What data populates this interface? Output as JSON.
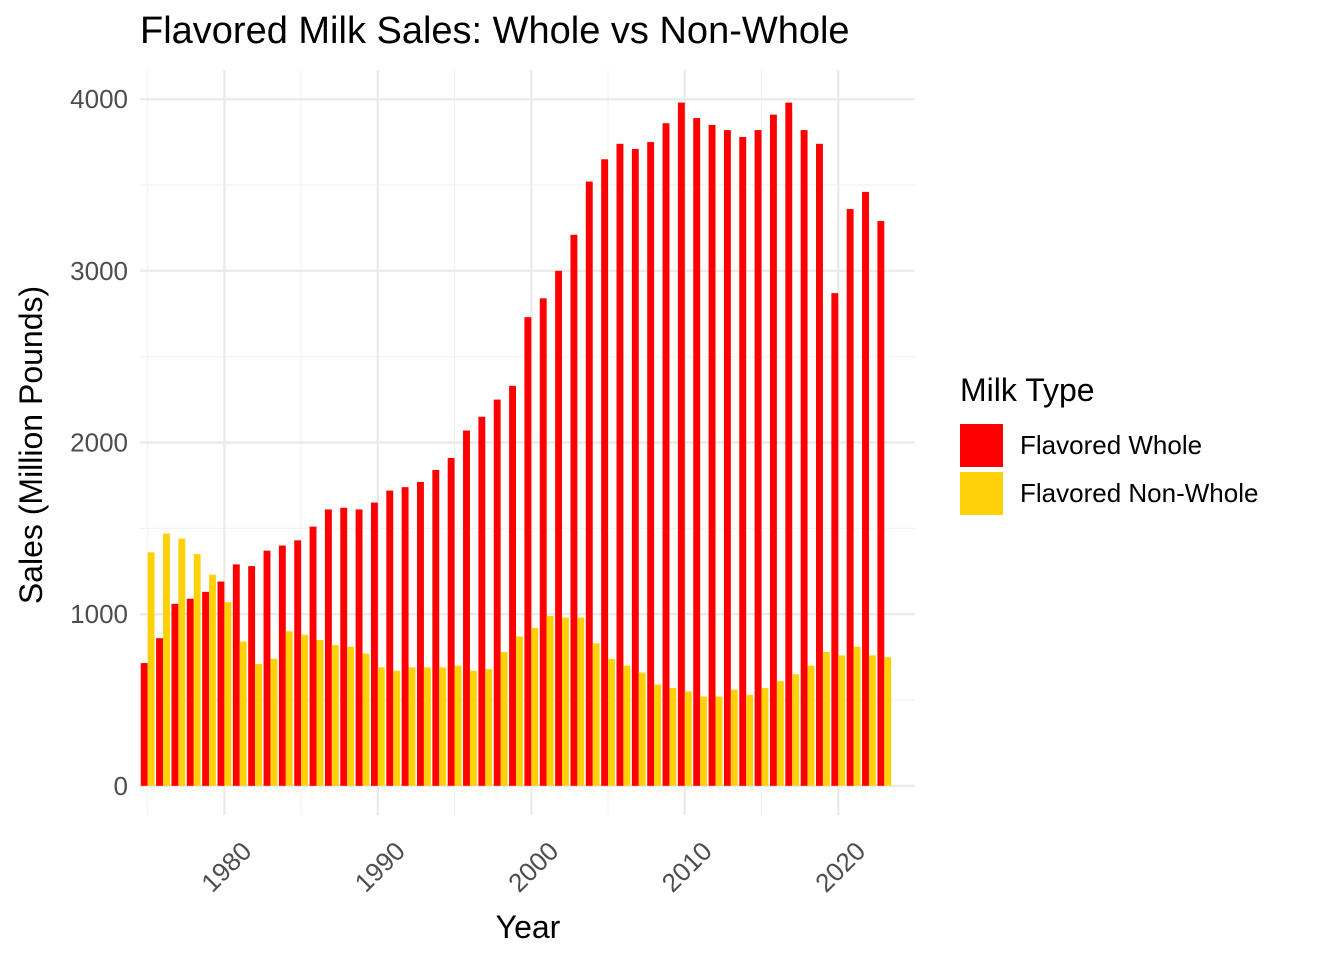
{
  "chart_data": {
    "type": "bar",
    "title": "Flavored Milk Sales: Whole vs Non-Whole",
    "xlabel": "Year",
    "ylabel": "Sales (Million Pounds)",
    "x": [
      1975,
      1976,
      1977,
      1978,
      1979,
      1980,
      1981,
      1982,
      1983,
      1984,
      1985,
      1986,
      1987,
      1988,
      1989,
      1990,
      1991,
      1992,
      1993,
      1994,
      1995,
      1996,
      1997,
      1998,
      1999,
      2000,
      2001,
      2002,
      2003,
      2004,
      2005,
      2006,
      2007,
      2008,
      2009,
      2010,
      2011,
      2012,
      2013,
      2014,
      2015,
      2016,
      2017,
      2018,
      2019,
      2020,
      2021,
      2022,
      2023
    ],
    "xticks": [
      1980,
      1990,
      2000,
      2010,
      2020
    ],
    "yticks": [
      0,
      1000,
      2000,
      3000,
      4000
    ],
    "xlim": [
      1974.5,
      2025
    ],
    "ylim": [
      -170,
      4170
    ],
    "grid": true,
    "legend_position": "right",
    "legend_title": "Milk Type",
    "series": [
      {
        "name": "Flavored Whole",
        "color": "#FF0000",
        "values": [
          715,
          860,
          1060,
          1090,
          1130,
          1190,
          1290,
          1280,
          1370,
          1400,
          1430,
          1510,
          1610,
          1620,
          1610,
          1650,
          1720,
          1740,
          1770,
          1840,
          1910,
          2070,
          2150,
          2250,
          2330,
          2730,
          2840,
          3000,
          3210,
          3520,
          3650,
          3740,
          3710,
          3750,
          3860,
          3980,
          3890,
          3850,
          3820,
          3780,
          3820,
          3910,
          3980,
          3820,
          3740,
          2870,
          3360,
          3460,
          3290
        ]
      },
      {
        "name": "Flavored Non-Whole",
        "color": "#FFD10A",
        "values": [
          1360,
          1470,
          1440,
          1350,
          1230,
          1070,
          840,
          710,
          740,
          900,
          880,
          850,
          820,
          810,
          770,
          690,
          670,
          690,
          690,
          690,
          700,
          670,
          680,
          780,
          870,
          920,
          990,
          980,
          980,
          830,
          740,
          700,
          660,
          590,
          570,
          550,
          520,
          520,
          560,
          530,
          570,
          610,
          650,
          700,
          780,
          760,
          810,
          760,
          750
        ]
      }
    ]
  }
}
